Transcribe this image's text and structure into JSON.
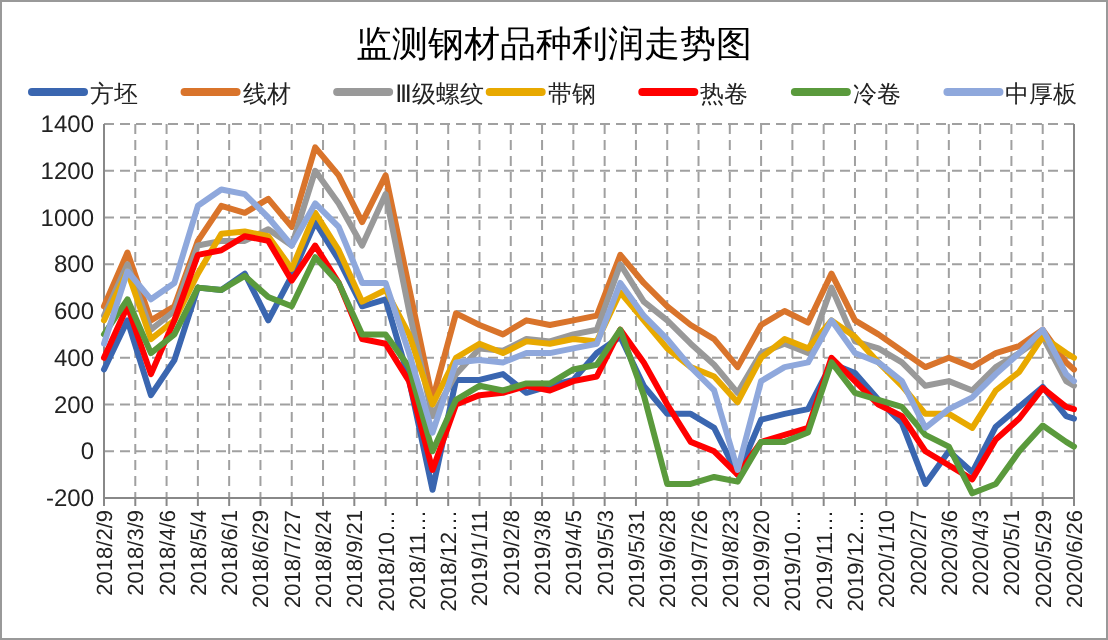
{
  "chart_data": {
    "type": "line",
    "title": "监测钢材品种利润走势图",
    "legend": "top",
    "grid": true,
    "x": [
      "2018-02-09",
      "2018-03-02",
      "2018-03-23",
      "2018-04-13",
      "2018-05-04",
      "2018-05-25",
      "2018-06-15",
      "2018-07-06",
      "2018-07-27",
      "2018-08-17",
      "2018-09-07",
      "2018-09-28",
      "2018-10-19",
      "2018-11-09",
      "2018-11-30",
      "2018-12-21",
      "2019-01-11",
      "2019-02-01",
      "2019-02-22",
      "2019-03-15",
      "2019-04-05",
      "2019-04-26",
      "2019-05-17",
      "2019-06-07",
      "2019-06-28",
      "2019-07-19",
      "2019-08-09",
      "2019-08-30",
      "2019-09-20",
      "2019-10-11",
      "2019-11-01",
      "2019-11-22",
      "2019-12-13",
      "2020-01-03",
      "2020-01-24",
      "2020-02-14",
      "2020-03-06",
      "2020-03-27",
      "2020-04-17",
      "2020-05-08",
      "2020-05-29",
      "2020-06-19",
      "2020-06-26"
    ],
    "xlim": [
      "2018-02-09",
      "2020-06-26"
    ],
    "xticks": [
      {
        "value": "2018-02-09",
        "label": "2018/2/9"
      },
      {
        "value": "2018-03-09",
        "label": "2018/3/9"
      },
      {
        "value": "2018-04-06",
        "label": "2018/4/6"
      },
      {
        "value": "2018-05-04",
        "label": "2018/5/4"
      },
      {
        "value": "2018-06-01",
        "label": "2018/6/1"
      },
      {
        "value": "2018-06-29",
        "label": "2018/6/29"
      },
      {
        "value": "2018-07-27",
        "label": "2018/7/27"
      },
      {
        "value": "2018-08-24",
        "label": "2018/8/24"
      },
      {
        "value": "2018-09-21",
        "label": "2018/9/21"
      },
      {
        "value": "2018-10-19",
        "label": "2018/10…"
      },
      {
        "value": "2018-11-16",
        "label": "2018/11…"
      },
      {
        "value": "2018-12-14",
        "label": "2018/12…"
      },
      {
        "value": "2019-01-11",
        "label": "2019/1/11"
      },
      {
        "value": "2019-02-08",
        "label": "2019/2/8"
      },
      {
        "value": "2019-03-08",
        "label": "2019/3/8"
      },
      {
        "value": "2019-04-05",
        "label": "2019/4/5"
      },
      {
        "value": "2019-05-03",
        "label": "2019/5/3"
      },
      {
        "value": "2019-05-31",
        "label": "2019/5/31"
      },
      {
        "value": "2019-06-28",
        "label": "2019/6/28"
      },
      {
        "value": "2019-07-26",
        "label": "2019/7/26"
      },
      {
        "value": "2019-08-23",
        "label": "2019/8/23"
      },
      {
        "value": "2019-09-20",
        "label": "2019/9/20"
      },
      {
        "value": "2019-10-18",
        "label": "2019/10…"
      },
      {
        "value": "2019-11-15",
        "label": "2019/11…"
      },
      {
        "value": "2019-12-13",
        "label": "2019/12…"
      },
      {
        "value": "2020-01-10",
        "label": "2020/1/10"
      },
      {
        "value": "2020-02-07",
        "label": "2020/2/7"
      },
      {
        "value": "2020-03-06",
        "label": "2020/3/6"
      },
      {
        "value": "2020-04-03",
        "label": "2020/4/3"
      },
      {
        "value": "2020-05-01",
        "label": "2020/5/1"
      },
      {
        "value": "2020-05-29",
        "label": "2020/5/29"
      },
      {
        "value": "2020-06-26",
        "label": "2020/6/26"
      }
    ],
    "ylim": [
      -200,
      1400
    ],
    "yticks": [
      -200,
      0,
      200,
      400,
      600,
      800,
      1000,
      1200,
      1400
    ],
    "series": [
      {
        "name": "方坯",
        "color": "#3a66b0",
        "values": [
          350,
          560,
          240,
          390,
          700,
          690,
          760,
          560,
          750,
          980,
          820,
          620,
          650,
          305,
          -165,
          305,
          305,
          330,
          250,
          280,
          305,
          420,
          490,
          280,
          160,
          160,
          100,
          -100,
          135,
          160,
          180,
          375,
          335,
          220,
          120,
          -140,
          0,
          -90,
          105,
          190,
          275,
          150,
          140
        ]
      },
      {
        "name": "线材",
        "color": "#d9742b",
        "values": [
          620,
          850,
          560,
          620,
          900,
          1050,
          1020,
          1080,
          960,
          1300,
          1180,
          980,
          1180,
          700,
          220,
          590,
          540,
          500,
          560,
          540,
          560,
          580,
          840,
          720,
          620,
          540,
          480,
          360,
          540,
          600,
          550,
          760,
          560,
          500,
          430,
          360,
          400,
          360,
          420,
          450,
          520,
          380,
          350
        ]
      },
      {
        "name": "Ⅲ级螺纹",
        "color": "#999999",
        "values": [
          580,
          800,
          520,
          600,
          880,
          900,
          900,
          950,
          880,
          1200,
          1060,
          880,
          1100,
          600,
          150,
          330,
          440,
          430,
          480,
          470,
          500,
          520,
          800,
          640,
          560,
          460,
          370,
          250,
          420,
          460,
          420,
          700,
          470,
          440,
          380,
          280,
          300,
          260,
          360,
          420,
          490,
          300,
          280
        ]
      },
      {
        "name": "带钢",
        "color": "#e8a900",
        "values": [
          560,
          770,
          480,
          560,
          760,
          930,
          940,
          920,
          780,
          1020,
          860,
          640,
          690,
          500,
          200,
          400,
          460,
          420,
          470,
          460,
          480,
          470,
          680,
          560,
          440,
          360,
          320,
          210,
          400,
          480,
          440,
          560,
          490,
          380,
          280,
          160,
          160,
          100,
          260,
          340,
          490,
          420,
          400
        ]
      },
      {
        "name": "热卷",
        "color": "#ff0000",
        "values": [
          400,
          620,
          330,
          560,
          840,
          860,
          920,
          900,
          730,
          880,
          720,
          480,
          460,
          300,
          -80,
          200,
          240,
          250,
          280,
          260,
          300,
          320,
          520,
          380,
          200,
          40,
          0,
          -100,
          40,
          70,
          100,
          400,
          300,
          200,
          150,
          0,
          -60,
          -120,
          50,
          140,
          270,
          190,
          180
        ]
      },
      {
        "name": "冷卷",
        "color": "#5a9a3c",
        "values": [
          500,
          650,
          420,
          500,
          700,
          690,
          750,
          660,
          620,
          830,
          720,
          500,
          500,
          360,
          0,
          220,
          280,
          260,
          290,
          290,
          350,
          370,
          520,
          240,
          -140,
          -140,
          -110,
          -130,
          40,
          40,
          80,
          380,
          250,
          220,
          190,
          70,
          20,
          -180,
          -140,
          0,
          110,
          40,
          20
        ]
      },
      {
        "name": "中厚板",
        "color": "#8fa8dc",
        "values": [
          460,
          770,
          650,
          720,
          1050,
          1120,
          1100,
          1000,
          880,
          1060,
          960,
          720,
          720,
          420,
          80,
          380,
          390,
          380,
          420,
          420,
          440,
          460,
          720,
          580,
          480,
          360,
          260,
          -80,
          300,
          360,
          380,
          560,
          420,
          380,
          300,
          100,
          180,
          230,
          330,
          420,
          520,
          330,
          300
        ]
      }
    ]
  }
}
